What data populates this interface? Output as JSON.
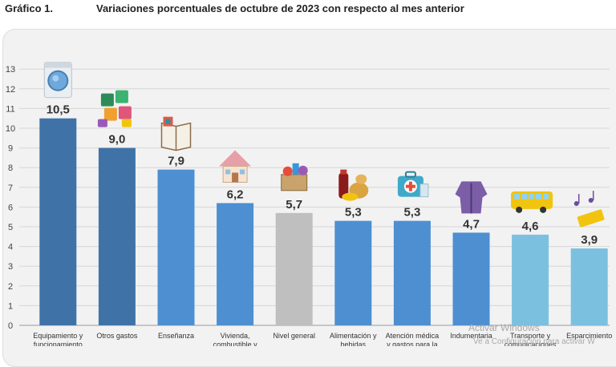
{
  "header": {
    "label": "Gráfico 1.",
    "title": "Variaciones porcentuales de octubre de 2023 con respecto al mes anterior"
  },
  "chart_data": {
    "type": "bar",
    "title": "Variaciones porcentuales de octubre de 2023 con respecto al mes anterior",
    "ylim": [
      0,
      13
    ],
    "yticks": [
      "0",
      "1",
      "2",
      "3",
      "4",
      "5",
      "6",
      "7",
      "8",
      "9",
      "10",
      "11",
      "12",
      "13"
    ],
    "grid": true,
    "categories": [
      [
        "Equipamiento y",
        "funcionamiento"
      ],
      [
        "Otros gastos"
      ],
      [
        "Enseñanza"
      ],
      [
        "Vivienda,",
        "combustible y"
      ],
      [
        "Nivel general"
      ],
      [
        "Alimentación y",
        "bebidas"
      ],
      [
        "Atención médica",
        "y gastos para la"
      ],
      [
        "Indumentaria"
      ],
      [
        "Transporte y",
        "comunicaciones"
      ],
      [
        "Esparcimiento"
      ]
    ],
    "values": [
      10.5,
      9.0,
      7.9,
      6.2,
      5.7,
      5.3,
      5.3,
      4.7,
      4.6,
      3.9
    ],
    "value_labels": [
      "10,5",
      "9,0",
      "7,9",
      "6,2",
      "5,7",
      "5,3",
      "5,3",
      "4,7",
      "4,6",
      "3,9"
    ],
    "colors": [
      "#3f73a8",
      "#3f73a8",
      "#4d8fd1",
      "#4d8fd1",
      "#bfbfbf",
      "#4d8fd1",
      "#4d8fd1",
      "#4d8fd1",
      "#7cc0e0",
      "#7cc0e0"
    ],
    "icons": [
      "washing-machine-icon",
      "money-puzzle-icon",
      "book-icon",
      "house-icon",
      "shopping-basket-icon",
      "food-drinks-icon",
      "medical-kit-icon",
      "jacket-icon",
      "bus-icon",
      "ticket-music-icon"
    ]
  },
  "watermark": {
    "line1": "Activar Windows",
    "line2": "Ve a Configuración para activar W"
  }
}
